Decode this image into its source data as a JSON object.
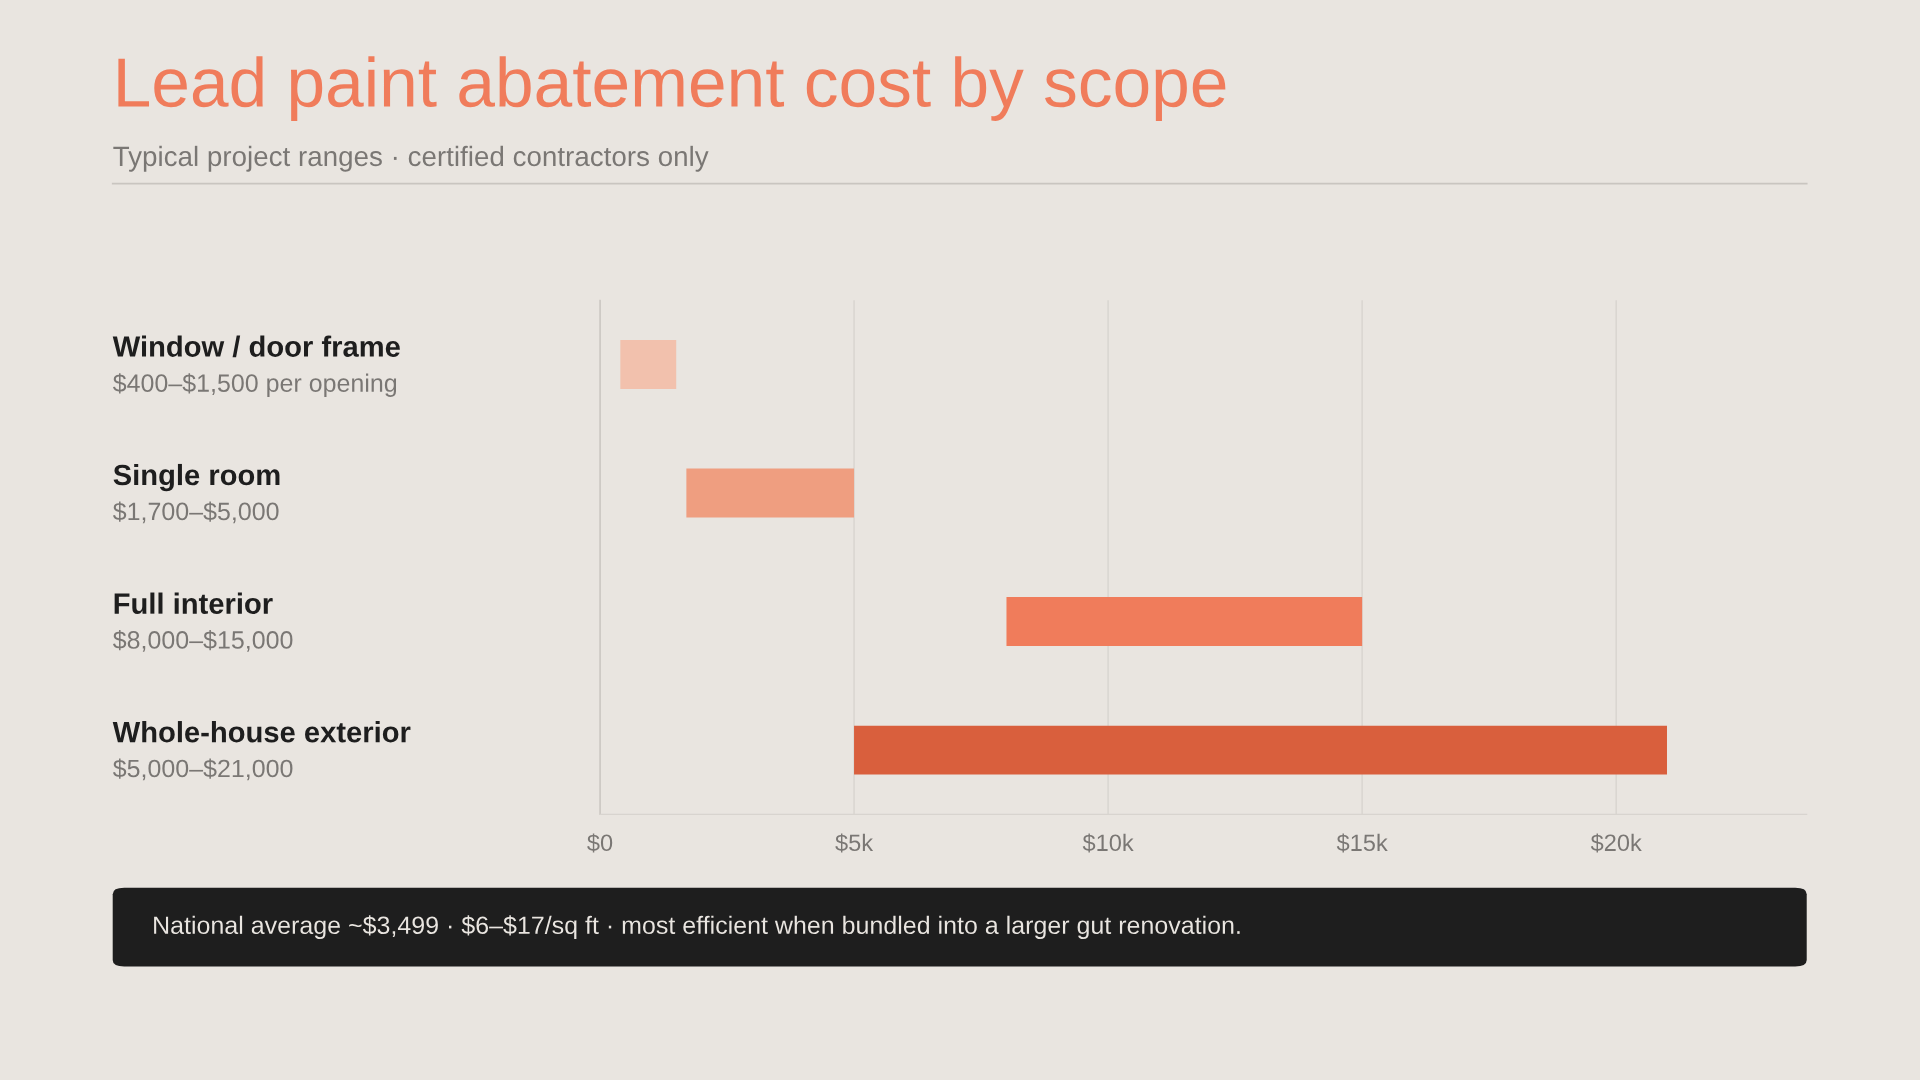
{
  "chart_data": {
    "type": "bar",
    "orientation": "horizontal",
    "title": "Lead paint abatement cost by scope",
    "subtitle": "Typical project ranges · certified contractors only",
    "categories": [
      "Window / door frame",
      "Single room",
      "Full interior",
      "Whole-house exterior"
    ],
    "base": [
      400,
      1700,
      8000,
      5000
    ],
    "values": [
      1100,
      3300,
      7000,
      16000
    ],
    "colors": [
      "#f2c1ad",
      "#ef9e80",
      "#f07c5b",
      "#d95f3d"
    ],
    "xlim": [
      0,
      23750
    ],
    "xticks": [
      {
        "value": 0,
        "label": "$0"
      },
      {
        "value": 5000,
        "label": "$5k"
      },
      {
        "value": 10000,
        "label": "$10k"
      },
      {
        "value": 15000,
        "label": "$15k"
      },
      {
        "value": 20000,
        "label": "$20k"
      }
    ],
    "grid": "x",
    "annotations": [
      "$400–$1,500 per opening",
      "$1,700–$5,000",
      "$8,000–$15,000",
      "$5,000–$21,000",
      "National average ~$3,499 · $6–$17/sq ft · most efficient when bundled into a larger gut renovation."
    ]
  }
}
